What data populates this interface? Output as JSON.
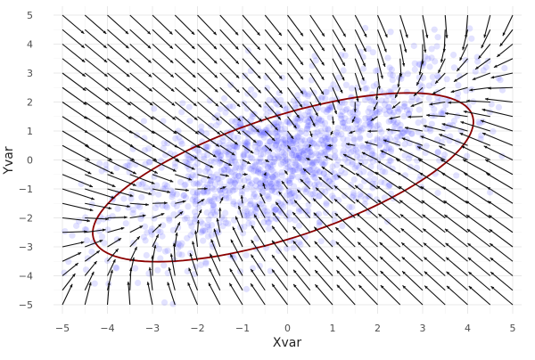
{
  "chart_data": {
    "type": "scatter",
    "title": "",
    "xlabel": "Xvar",
    "ylabel": "Yvar",
    "xlim": [
      -5,
      5
    ],
    "ylim": [
      -5,
      5
    ],
    "xticks": [
      -5,
      -4,
      -3,
      -2,
      -1,
      0,
      1,
      2,
      3,
      4,
      5
    ],
    "yticks": [
      -5,
      -4,
      -3,
      -2,
      -1,
      0,
      1,
      2,
      3,
      4,
      5
    ],
    "grid": true,
    "legend": "none",
    "colors": {
      "points": "#3b3bff",
      "ellipse": "#8b0000",
      "arrows": "#111111",
      "grid": "#ebebeb"
    },
    "scatter": {
      "description_hidden": true,
      "center": [
        0,
        0
      ],
      "x_spread": 2.0,
      "y_spread": 1.6,
      "correlation": 0.6,
      "count": 1500,
      "opacity": 0.15
    },
    "ellipse": {
      "center": [
        -0.1,
        -0.6
      ],
      "semi_major": 4.75,
      "semi_minor": 1.95,
      "angle_deg": 30
    },
    "vector_field": {
      "grid_x": [
        -5,
        -4.5,
        -4,
        -3.5,
        -3,
        -2.5,
        -2,
        -1.5,
        -1,
        -0.5,
        0,
        0.5,
        1,
        1.5,
        2,
        2.5,
        3,
        3.5,
        4,
        4.5,
        5
      ],
      "grid_y": [
        -5,
        -4.5,
        -4,
        -3.5,
        -3,
        -2.5,
        -2,
        -1.5,
        -1,
        -0.5,
        0,
        0.5,
        1,
        1.5,
        2,
        2.5,
        3,
        3.5,
        4,
        4.5,
        5
      ],
      "field": "gradient of bivariate normal log-density",
      "scale": 0.1,
      "max_length": 0.8
    }
  }
}
